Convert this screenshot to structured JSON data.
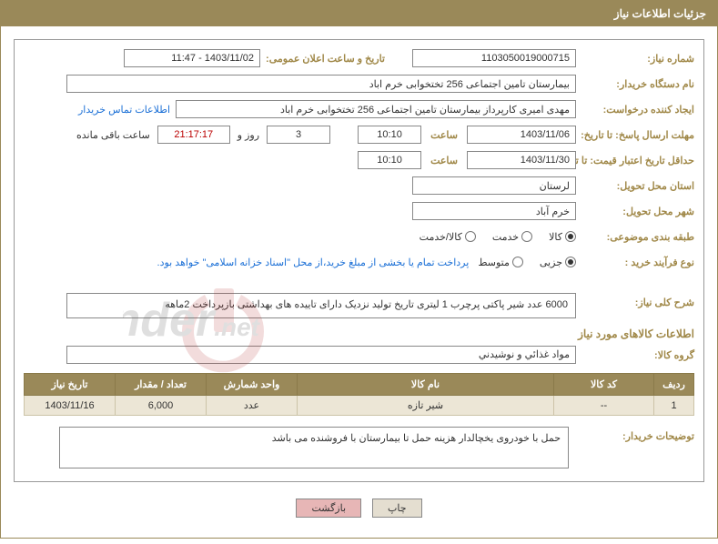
{
  "header": {
    "title": "جزئیات اطلاعات نیاز"
  },
  "labels": {
    "need_no": "شماره نیاز:",
    "announce_dt": "تاریخ و ساعت اعلان عمومی:",
    "buyer_org": "نام دستگاه خریدار:",
    "requester": "ایجاد کننده درخواست:",
    "contact_link": "اطلاعات تماس خریدار",
    "response_deadline": "مهلت ارسال پاسخ: تا تاریخ:",
    "hour": "ساعت",
    "days_and": "روز و",
    "time_remaining": "ساعت باقی مانده",
    "price_validity": "حداقل تاریخ اعتبار قیمت: تا تاریخ:",
    "delivery_province": "استان محل تحویل:",
    "delivery_city": "شهر محل تحویل:",
    "category": "طبقه بندی موضوعی:",
    "purchase_type": "نوع فرآیند خرید :",
    "payment_note": "پرداخت تمام یا بخشی از مبلغ خرید،از محل \"اسناد خزانه اسلامی\" خواهد بود.",
    "general_desc": "شرح کلی نیاز:",
    "items_info": "اطلاعات کالاهای مورد نیاز",
    "item_group": "گروه کالا:",
    "buyer_notes": "توضیحات خریدار:"
  },
  "fields": {
    "need_no": "1103050019000715",
    "announce_dt": "1403/11/02 - 11:47",
    "buyer_org": "بیمارستان تامین اجتماعی  256 تختخوابی خرم اباد",
    "requester": "مهدی امیری کارپرداز بیمارستان تامین اجتماعی  256 تختخوابی خرم اباد",
    "resp_date": "1403/11/06",
    "resp_time": "10:10",
    "days_left": "3",
    "countdown": "21:17:17",
    "price_date": "1403/11/30",
    "price_time": "10:10",
    "province": "لرستان",
    "city": "خرم آباد",
    "general_desc": "6000 عدد شیر پاکتی پرچرب 1 لیتری تاریخ تولید نزدیک دارای تاییده های بهداشتی بازپرداخت 2ماهه",
    "item_group": "مواد غذائي و نوشيدني",
    "buyer_notes": "حمل با خودروی یخچالدار هزینه حمل تا بیمارستان با فروشنده می باشد"
  },
  "radios": {
    "category": [
      {
        "label": "کالا",
        "checked": true
      },
      {
        "label": "خدمت",
        "checked": false
      },
      {
        "label": "کالا/خدمت",
        "checked": false
      }
    ],
    "purchase": [
      {
        "label": "جزیی",
        "checked": true
      },
      {
        "label": "متوسط",
        "checked": false
      }
    ]
  },
  "table": {
    "headers": {
      "row": "ردیف",
      "code": "کد کالا",
      "name": "نام کالا",
      "unit": "واحد شمارش",
      "qty": "تعداد / مقدار",
      "date": "تاریخ نیاز"
    },
    "rows": [
      {
        "row": "1",
        "code": "--",
        "name": "شیر تازه",
        "unit": "عدد",
        "qty": "6,000",
        "date": "1403/11/16"
      }
    ]
  },
  "buttons": {
    "print": "چاپ",
    "return": "بازگشت"
  },
  "watermark": {
    "text1": "Aria",
    "letter": "T",
    "text2": "ender",
    "suffix": ".net"
  }
}
